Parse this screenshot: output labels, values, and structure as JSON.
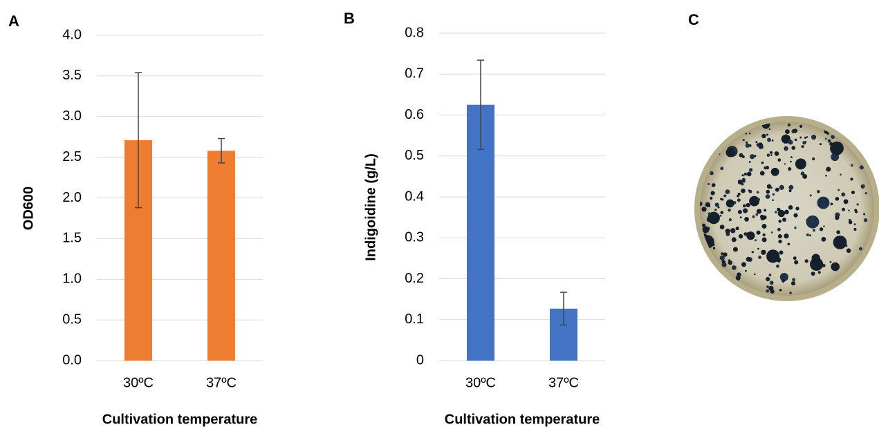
{
  "chart_data": [
    {
      "type": "bar",
      "panel": "A",
      "ylabel": "OD600",
      "xlabel": "Cultivation temperature",
      "categories": [
        "30ºC",
        "37ºC"
      ],
      "values": [
        2.71,
        2.58
      ],
      "errors": [
        0.83,
        0.15
      ],
      "color": "#ED7D31",
      "ylim": [
        0,
        4
      ],
      "yticks": [
        {
          "value": 0,
          "label": "0.0"
        },
        0.5,
        {
          "value": 1,
          "label": "1.0"
        },
        1.5,
        {
          "value": 2,
          "label": "2.0"
        },
        2.5,
        {
          "value": 3,
          "label": "3.0"
        },
        3.5,
        {
          "value": 4,
          "label": "4.0"
        }
      ],
      "grid": true
    },
    {
      "type": "bar",
      "panel": "B",
      "ylabel": "Indigoidine (g/L)",
      "xlabel": "Cultivation temperature",
      "categories": [
        "30ºC",
        "37ºC"
      ],
      "values": [
        0.625,
        0.127
      ],
      "errors": [
        0.109,
        0.04
      ],
      "color": "#4472C4",
      "ylim": [
        0,
        0.8
      ],
      "yticks": [
        0,
        0.1,
        0.2,
        0.3,
        0.4,
        0.5,
        0.6,
        0.7,
        0.8
      ],
      "grid": true
    }
  ],
  "image_panel": {
    "panel": "C"
  }
}
